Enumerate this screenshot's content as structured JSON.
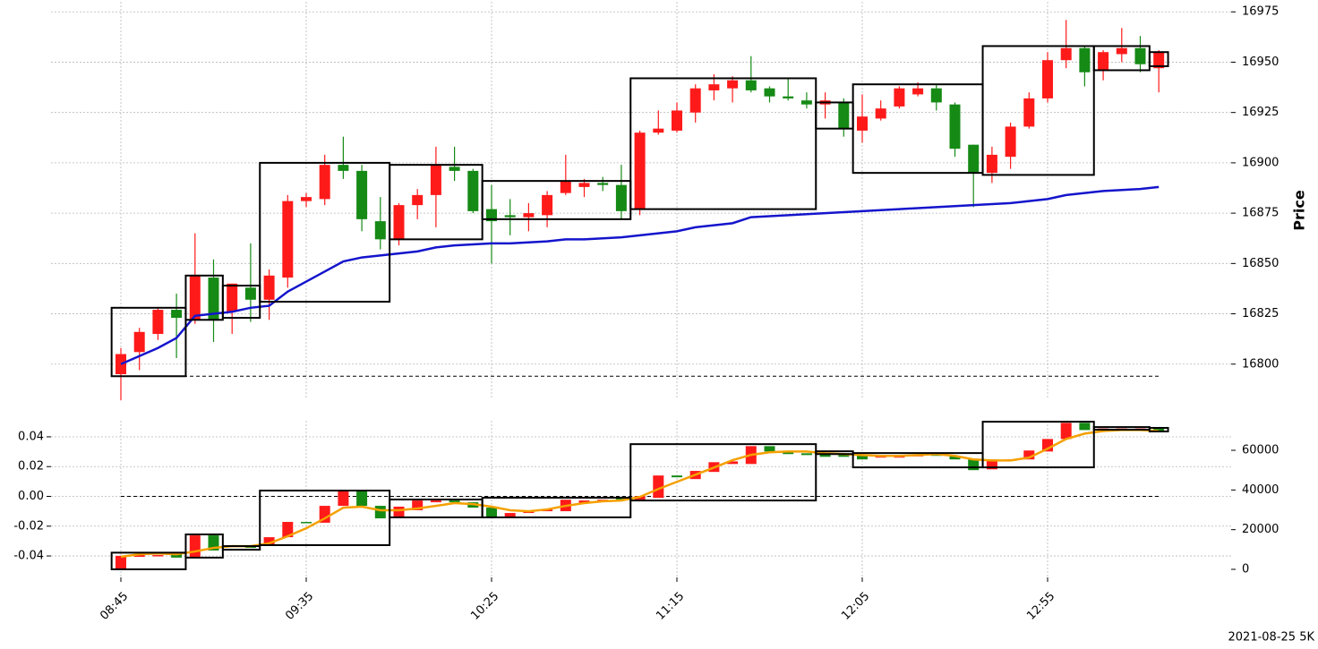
{
  "chart_data": [
    {
      "type": "candlestick",
      "categories": [
        "08:45",
        null,
        null,
        null,
        null,
        null,
        null,
        null,
        null,
        null,
        "09:35",
        null,
        null,
        null,
        null,
        null,
        null,
        null,
        null,
        null,
        "10:25",
        null,
        null,
        null,
        null,
        null,
        null,
        null,
        null,
        null,
        "11:15",
        null,
        null,
        null,
        null,
        null,
        null,
        null,
        null,
        null,
        "12:05",
        null,
        null,
        null,
        null,
        null,
        null,
        null,
        null,
        null,
        "12:55",
        null,
        null,
        null,
        null,
        null,
        null
      ],
      "open": [
        16795,
        16806,
        16815,
        16827,
        16822,
        16843,
        16826,
        16838,
        16832,
        16843,
        16881,
        16882,
        16899,
        16896,
        16871,
        16862,
        16879,
        16884,
        16898,
        16896,
        16877,
        16874,
        16873,
        16874,
        16885,
        16888,
        16890,
        16889,
        16877,
        16915,
        16916,
        16925,
        16936,
        16937,
        16941,
        16937,
        16933,
        16931,
        16929,
        16930,
        16916,
        16922,
        16928,
        16934,
        16937,
        16929,
        16909,
        16895,
        16903,
        16918,
        16932,
        16951,
        16957,
        16946,
        16954,
        16957,
        16947
      ],
      "high": [
        16808,
        16818,
        16828,
        16835,
        16865,
        16852,
        16840,
        16860,
        16847,
        16884,
        16885,
        16904,
        16913,
        16899,
        16883,
        16880,
        16887,
        16908,
        16908,
        16897,
        16889,
        16882,
        16880,
        16886,
        16904,
        16892,
        16893,
        16899,
        16916,
        16926,
        16930,
        16939,
        16944,
        16943,
        16953,
        16938,
        16942,
        16935,
        16935,
        16932,
        16934,
        16931,
        16938,
        16940,
        16939,
        16930,
        16909,
        16908,
        16920,
        16935,
        16955,
        16971,
        16958,
        16956,
        16967,
        16963,
        16956
      ],
      "low": [
        16782,
        16797,
        16812,
        16803,
        16820,
        16811,
        16815,
        16821,
        16822,
        16838,
        16878,
        16879,
        16892,
        16866,
        16857,
        16859,
        16872,
        16868,
        16891,
        16875,
        16850,
        16864,
        16866,
        16868,
        16884,
        16883,
        16886,
        16872,
        16874,
        16914,
        16915,
        16920,
        16931,
        16930,
        16935,
        16930,
        16931,
        16927,
        16922,
        16913,
        16910,
        16921,
        16927,
        16933,
        16926,
        16903,
        16878,
        16890,
        16897,
        16917,
        16930,
        16947,
        16938,
        16941,
        16950,
        16945,
        16935
      ],
      "close": [
        16805,
        16816,
        16827,
        16823,
        16844,
        16822,
        16840,
        16832,
        16844,
        16881,
        16883,
        16899,
        16896,
        16872,
        16862,
        16879,
        16884,
        16899,
        16896,
        16876,
        16871,
        16873,
        16875,
        16884,
        16891,
        16890,
        16889,
        16876,
        16915,
        16917,
        16926,
        16937,
        16939,
        16941,
        16936,
        16933,
        16932,
        16929,
        16931,
        16917,
        16923,
        16927,
        16937,
        16937,
        16930,
        16907,
        16895,
        16904,
        16918,
        16932,
        16951,
        16957,
        16945,
        16955,
        16957,
        16949,
        16955
      ],
      "up_color": "#ff1a1a",
      "down_color": "#158a15",
      "line": {
        "color": "#1414cc",
        "values": [
          16800,
          16804,
          16808,
          16813,
          16824,
          16825,
          16826,
          16828,
          16829,
          16836,
          16841,
          16846,
          16851,
          16853,
          16854,
          16855,
          16856,
          16858,
          16859,
          16859.5,
          16860,
          16860,
          16860.5,
          16861,
          16862,
          16862,
          16862.5,
          16863,
          16864,
          16865,
          16866,
          16868,
          16869,
          16870,
          16873,
          16873.5,
          16874,
          16874.5,
          16875,
          16875.5,
          16876,
          16876.5,
          16877,
          16877.5,
          16878,
          16878.5,
          16879,
          16879.5,
          16880,
          16881,
          16882,
          16884,
          16885,
          16886,
          16886.5,
          16887,
          16888
        ]
      },
      "boxes": [
        {
          "start": 0,
          "end": 3,
          "low": 16794,
          "high": 16828
        },
        {
          "start": 4,
          "end": 5,
          "low": 16822,
          "high": 16844
        },
        {
          "start": 6,
          "end": 7,
          "low": 16823,
          "high": 16839
        },
        {
          "start": 8,
          "end": 14,
          "low": 16831,
          "high": 16900
        },
        {
          "start": 15,
          "end": 19,
          "low": 16862,
          "high": 16899
        },
        {
          "start": 20,
          "end": 27,
          "low": 16872,
          "high": 16891
        },
        {
          "start": 28,
          "end": 37,
          "low": 16877,
          "high": 16942
        },
        {
          "start": 38,
          "end": 39,
          "low": 16917,
          "high": 16930
        },
        {
          "start": 40,
          "end": 46,
          "low": 16895,
          "high": 16939
        },
        {
          "start": 47,
          "end": 52,
          "low": 16894,
          "high": 16958
        },
        {
          "start": 53,
          "end": 55,
          "low": 16946,
          "high": 16958
        },
        {
          "start": 56,
          "end": 56,
          "low": 16948,
          "high": 16955
        }
      ],
      "hline": 16794,
      "ylim": [
        16783,
        16980
      ],
      "yticks": [
        16800,
        16825,
        16850,
        16875,
        16900,
        16925,
        16950,
        16975
      ],
      "ylabel": "Price",
      "grid": true,
      "annotation": "2021-08-25 5K"
    },
    {
      "type": "candlestick",
      "open": [
        0,
        6300,
        7000,
        7700,
        6300,
        17100,
        11300,
        11700,
        12200,
        16200,
        23900,
        23500,
        32000,
        39700,
        32000,
        26200,
        29800,
        33800,
        34700,
        33800,
        31100,
        26200,
        28400,
        29300,
        29300,
        33400,
        34300,
        35600,
        35100,
        36000,
        47300,
        45500,
        49100,
        53100,
        53100,
        62100,
        59400,
        58500,
        58100,
        57600,
        57600,
        56300,
        56300,
        57200,
        58100,
        57200,
        55800,
        50400,
        54900,
        55400,
        59400,
        65700,
        73800,
        70200,
        70200,
        70200,
        71000
      ],
      "close": [
        6800,
        7200,
        7200,
        5900,
        17100,
        9500,
        12200,
        10800,
        16200,
        23900,
        23400,
        32000,
        39700,
        32000,
        25700,
        31600,
        34700,
        34700,
        33800,
        31100,
        26200,
        28400,
        29300,
        30200,
        35100,
        34700,
        35100,
        34700,
        36900,
        47300,
        46400,
        49600,
        54000,
        54400,
        62100,
        59400,
        58100,
        57600,
        56700,
        56700,
        55400,
        57200,
        57600,
        57600,
        57200,
        55400,
        50000,
        55400,
        55400,
        59900,
        65700,
        73800,
        70200,
        71000,
        71000,
        71000,
        69700
      ],
      "axis": "y2",
      "up_color": "#ff1a1a",
      "down_color": "#158a15",
      "line": {
        "color": "#f5a000",
        "axis": "y2",
        "values": [
          6300,
          7600,
          8000,
          7600,
          9000,
          10800,
          11700,
          11700,
          13100,
          16700,
          20700,
          25700,
          31100,
          31600,
          29800,
          29800,
          30700,
          32000,
          33400,
          32900,
          31600,
          29800,
          29300,
          30200,
          32000,
          33400,
          34300,
          34700,
          36500,
          40500,
          44100,
          47700,
          51300,
          55000,
          57700,
          59000,
          59400,
          59400,
          58500,
          58100,
          57600,
          57200,
          57200,
          57600,
          58100,
          57200,
          55400,
          54900,
          54900,
          56300,
          60800,
          65700,
          68400,
          69700,
          70200,
          70200,
          69700
        ]
      },
      "boxes": [
        {
          "start": 0,
          "end": 3,
          "low": 0,
          "high": 8400
        },
        {
          "start": 4,
          "end": 5,
          "low": 5900,
          "high": 17600
        },
        {
          "start": 6,
          "end": 7,
          "low": 9900,
          "high": 11700
        },
        {
          "start": 8,
          "end": 14,
          "low": 12200,
          "high": 39700
        },
        {
          "start": 15,
          "end": 19,
          "low": 26200,
          "high": 35200
        },
        {
          "start": 20,
          "end": 27,
          "low": 26200,
          "high": 36100
        },
        {
          "start": 28,
          "end": 37,
          "low": 34700,
          "high": 63100
        },
        {
          "start": 38,
          "end": 39,
          "low": 58100,
          "high": 59500
        },
        {
          "start": 40,
          "end": 46,
          "low": 51400,
          "high": 58600
        },
        {
          "start": 47,
          "end": 52,
          "low": 51400,
          "high": 74400
        },
        {
          "start": 53,
          "end": 55,
          "low": 70400,
          "high": 71700
        },
        {
          "start": 56,
          "end": 56,
          "low": 69500,
          "high": 71300
        }
      ],
      "hline": 0,
      "ylim": [
        -0.0544,
        0.0508
      ],
      "yticks": [
        -0.04,
        -0.02,
        {
          "value": 0,
          "label": "0.00"
        },
        0.02,
        0.04
      ],
      "y2lim": [
        -4060,
        74900
      ],
      "y2ticks": [
        0,
        20000,
        40000,
        60000
      ],
      "grid": true
    }
  ]
}
